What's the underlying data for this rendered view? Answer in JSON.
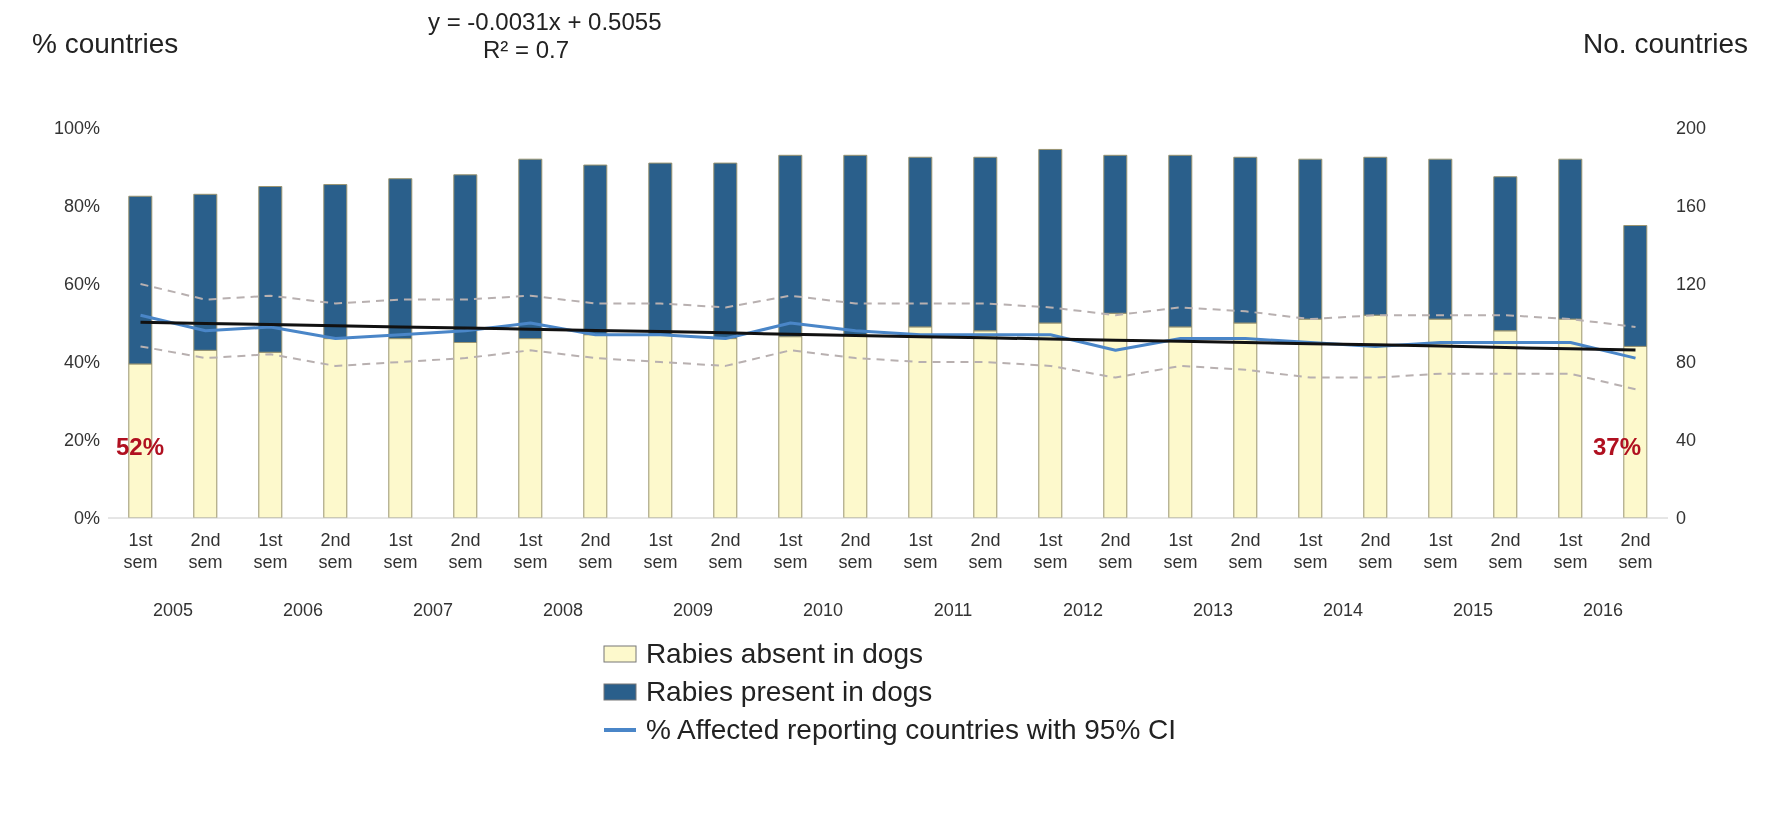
{
  "chart_data": {
    "type": "bar",
    "ylabel": "% countries",
    "y2label": "No. countries",
    "categories": [
      "1st sem",
      "2nd sem",
      "1st sem",
      "2nd sem",
      "1st sem",
      "2nd sem",
      "1st sem",
      "2nd sem",
      "1st sem",
      "2nd sem",
      "1st sem",
      "2nd sem",
      "1st sem",
      "2nd sem",
      "1st sem",
      "2nd sem",
      "1st sem",
      "2nd sem",
      "1st sem",
      "2nd sem",
      "1st sem",
      "2nd sem",
      "1st sem",
      "2nd sem"
    ],
    "stacked": true,
    "series": [
      {
        "name": "Rabies absent in dogs",
        "color": "#fdf9cc",
        "axis": "y2",
        "values": [
          79,
          86,
          85,
          92,
          92,
          90,
          92,
          94,
          94,
          92,
          93,
          94,
          98,
          96,
          100,
          105,
          98,
          100,
          102,
          104,
          102,
          96,
          102,
          88
        ]
      },
      {
        "name": "Rabies present in dogs",
        "color": "#2a5f8b",
        "axis": "y2",
        "values": [
          86,
          80,
          85,
          79,
          82,
          86,
          92,
          87,
          88,
          90,
          93,
          92,
          87,
          89,
          89,
          81,
          88,
          85,
          82,
          81,
          82,
          79,
          82,
          62
        ]
      },
      {
        "type": "line",
        "color": "#b8b0b0",
        "line_style": "dashed",
        "values": [
          44,
          41,
          42,
          39,
          40,
          41,
          43,
          41,
          40,
          39,
          43,
          41,
          40,
          40,
          39,
          36,
          39,
          38,
          36,
          36,
          37,
          37,
          37,
          33
        ]
      },
      {
        "type": "line",
        "color": "#b8b0b0",
        "line_style": "dashed",
        "values": [
          60,
          56,
          57,
          55,
          56,
          56,
          57,
          55,
          55,
          54,
          57,
          55,
          55,
          55,
          54,
          52,
          54,
          53,
          51,
          52,
          52,
          52,
          51,
          49
        ]
      },
      {
        "name": "% Affected reporting countries with 95% CI",
        "type": "line",
        "color": "#4a86c8",
        "values": [
          52,
          48,
          49,
          46,
          47,
          48,
          50,
          47,
          47,
          46,
          50,
          48,
          47,
          47,
          47,
          43,
          46,
          46,
          45,
          44,
          45,
          45,
          45,
          41
        ]
      },
      {
        "type": "line",
        "color": "#111111",
        "values": [
          50.2,
          49.9,
          49.6,
          49.3,
          49.0,
          48.7,
          48.4,
          48.1,
          47.8,
          47.5,
          47.1,
          46.8,
          46.5,
          46.2,
          45.9,
          45.6,
          45.3,
          45.0,
          44.7,
          44.4,
          44.1,
          43.7,
          43.4,
          43.1
        ]
      }
    ],
    "ylim": [
      0,
      100
    ],
    "yticks": [
      {
        "value": 0,
        "label": "0%"
      },
      {
        "value": 20,
        "label": "20%"
      },
      {
        "value": 40,
        "label": "40%"
      },
      {
        "value": 60,
        "label": "60%"
      },
      {
        "value": 80,
        "label": "80%"
      },
      {
        "value": 100,
        "label": "100%"
      }
    ],
    "y2lim": [
      0,
      200
    ],
    "y2ticks": [
      0,
      40,
      80,
      120,
      160,
      200
    ],
    "grid": false,
    "legend": "bottom",
    "annotations": [
      "y = -0.0031x + 0.5055",
      "R² = 0.7",
      "52%",
      "37%",
      "2005",
      "2006",
      "2007",
      "2008",
      "2009",
      "2010",
      "2011",
      "2012",
      "2013",
      "2014",
      "2015",
      "2016"
    ]
  }
}
